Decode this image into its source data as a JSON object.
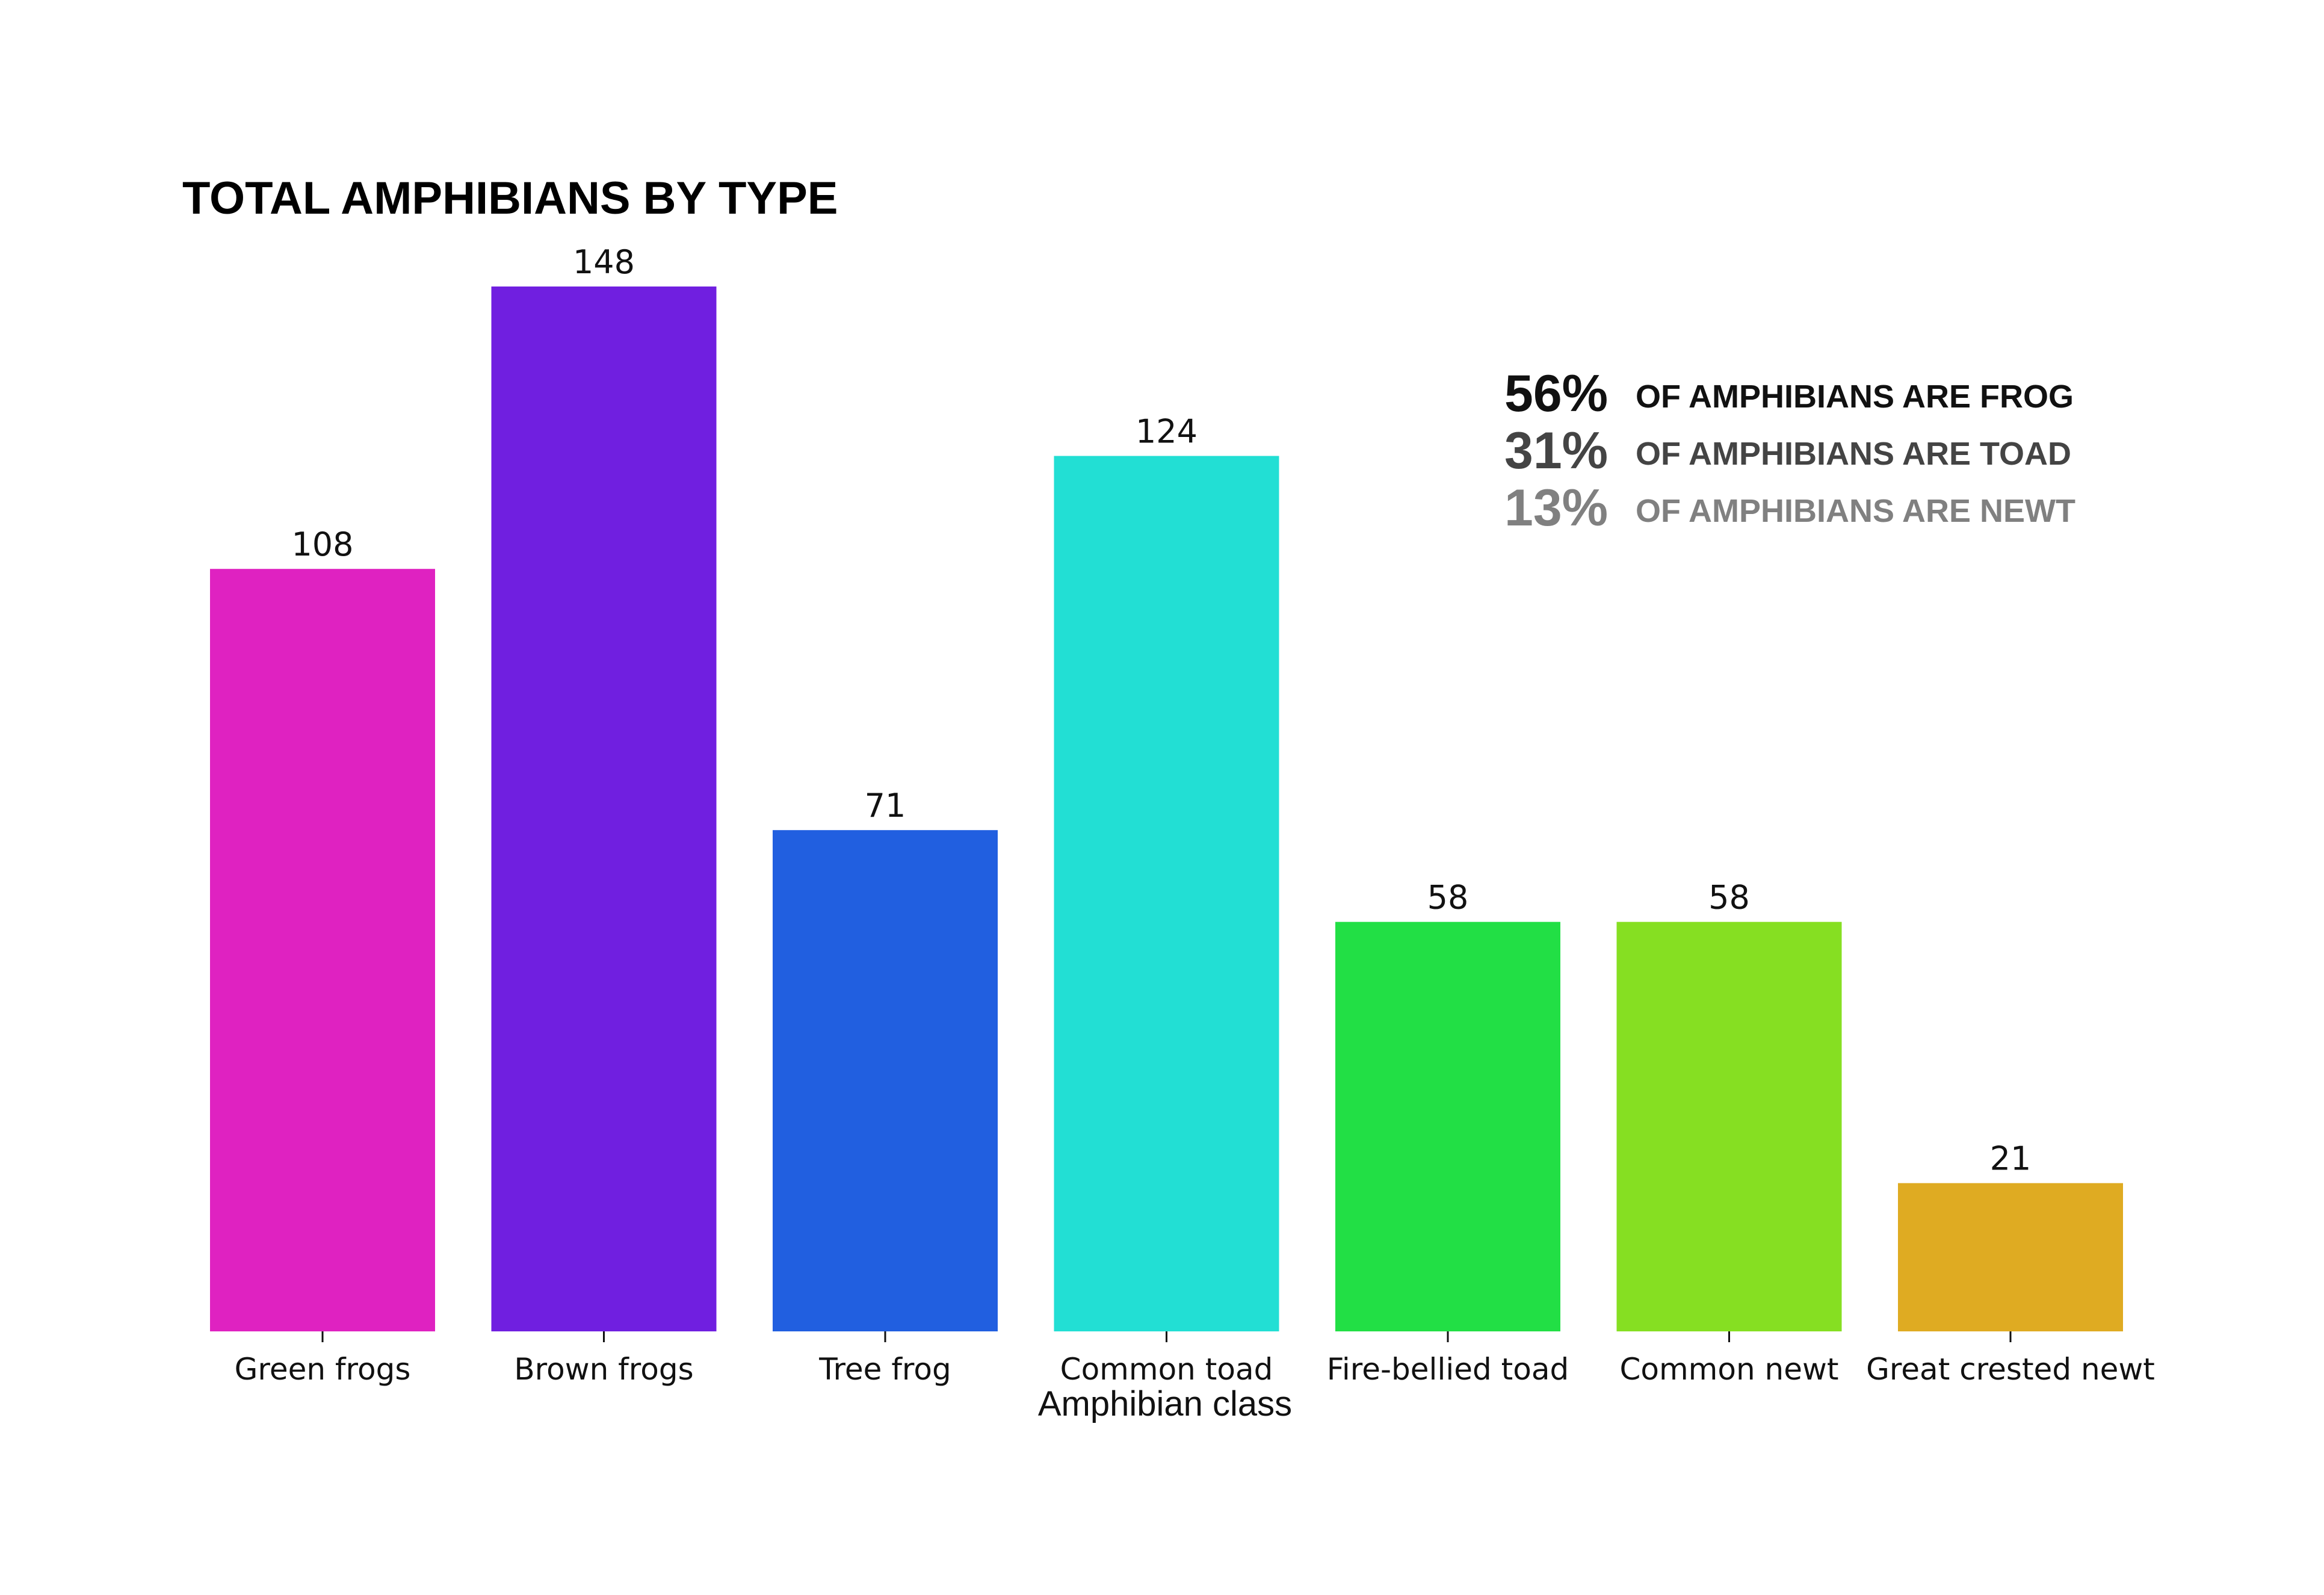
{
  "chart_data": {
    "type": "bar",
    "title": "TOTAL AMPHIBIANS BY TYPE",
    "xlabel": "Amphibian class",
    "ylabel": "",
    "ylim": [
      0,
      148
    ],
    "grid": false,
    "legend": "none",
    "categories": [
      "Green frogs",
      "Brown frogs",
      "Tree frog",
      "Common toad",
      "Fire-bellied toad",
      "Common newt",
      "Great crested newt"
    ],
    "values": [
      108,
      148,
      71,
      124,
      58,
      58,
      21
    ],
    "colors": [
      "#df22c1",
      "#701fe0",
      "#215fe0",
      "#22dfd4",
      "#22df45",
      "#86df22",
      "#dfab22"
    ],
    "annotations": [
      {
        "pct": "56%",
        "text": "OF AMPHIBIANS ARE FROG",
        "color": "#111111"
      },
      {
        "pct": "31%",
        "text": "OF AMPHIBIANS ARE TOAD",
        "color": "#444444"
      },
      {
        "pct": "13%",
        "text": "OF AMPHIBIANS ARE NEWT",
        "color": "#808080"
      }
    ]
  }
}
